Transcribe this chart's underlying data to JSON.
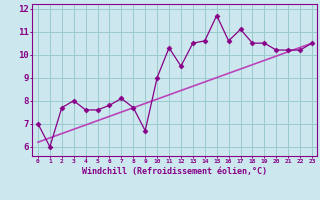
{
  "title": "",
  "xlabel": "Windchill (Refroidissement éolien,°C)",
  "ylabel": "",
  "bg_color": "#cce8ee",
  "line_color": "#880088",
  "trend_color": "#bb44bb",
  "xlim": [
    -0.5,
    23.4
  ],
  "ylim": [
    5.6,
    12.2
  ],
  "xticks": [
    0,
    1,
    2,
    3,
    4,
    5,
    6,
    7,
    8,
    9,
    10,
    11,
    12,
    13,
    14,
    15,
    16,
    17,
    18,
    19,
    20,
    21,
    22,
    23
  ],
  "yticks": [
    6,
    7,
    8,
    9,
    10,
    11,
    12
  ],
  "data_x": [
    0,
    1,
    2,
    3,
    4,
    5,
    6,
    7,
    8,
    9,
    10,
    11,
    12,
    13,
    14,
    15,
    16,
    17,
    18,
    19,
    20,
    21,
    22,
    23
  ],
  "data_y": [
    7.0,
    6.0,
    7.7,
    8.0,
    7.6,
    7.6,
    7.8,
    8.1,
    7.7,
    6.7,
    9.0,
    10.3,
    9.5,
    10.5,
    10.6,
    11.7,
    10.6,
    11.1,
    10.5,
    10.5,
    10.2,
    10.2,
    10.2,
    10.5
  ],
  "trend_x": [
    0,
    23
  ],
  "trend_y": [
    6.2,
    10.5
  ],
  "grid_color": "#99cccc",
  "figsize": [
    3.2,
    2.0
  ],
  "dpi": 100,
  "xlabel_fontsize": 6.0,
  "xtick_fontsize": 4.5,
  "ytick_fontsize": 6.5
}
